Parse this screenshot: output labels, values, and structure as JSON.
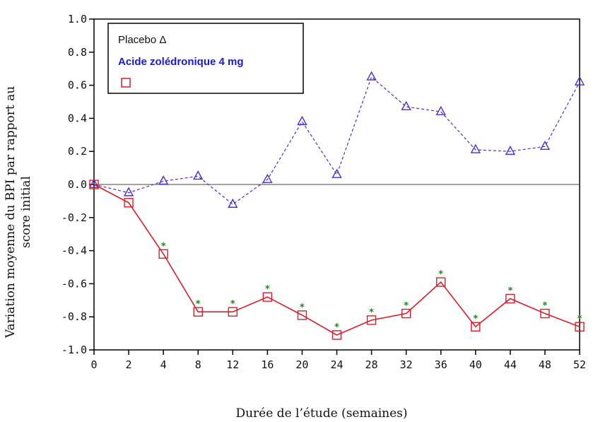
{
  "chart_data": {
    "type": "line",
    "xlabel": "Durée de l’étude (semaines)",
    "ylabel_lines": [
      "Variation moyenne du BPI par rapport au",
      "score initial"
    ],
    "x": [
      0,
      2,
      4,
      8,
      12,
      16,
      20,
      24,
      28,
      32,
      36,
      40,
      44,
      48,
      52
    ],
    "x_tick_labels": [
      "0",
      "2",
      "4",
      "8",
      "12",
      "16",
      "20",
      "24",
      "28",
      "32",
      "36",
      "40",
      "44",
      "48",
      "52"
    ],
    "ylim": [
      -1.0,
      1.0
    ],
    "y_tick_labels": [
      "1.0",
      "0.8",
      "0.6",
      "0.4",
      "0.2",
      "0.0",
      "-0.2",
      "-0.4",
      "-0.6",
      "-0.8",
      "-1.0"
    ],
    "reference_line_y": 0.0,
    "legend": {
      "placement": "top-left",
      "line1": "Placebo Δ",
      "line2": "Acide zolédronique 4 mg",
      "line3_marker": "square"
    },
    "series": [
      {
        "marker": "triangle",
        "color": "#4b2fd0",
        "linestyle": "dashed",
        "values": [
          0.0,
          -0.05,
          0.02,
          0.05,
          -0.12,
          0.03,
          0.38,
          0.06,
          0.65,
          0.47,
          0.44,
          0.21,
          0.2,
          0.23,
          0.62
        ]
      },
      {
        "marker": "square",
        "color": "#d81e2a",
        "linestyle": "solid",
        "values": [
          0.0,
          -0.11,
          -0.42,
          -0.77,
          -0.77,
          -0.68,
          -0.79,
          -0.91,
          -0.82,
          -0.78,
          -0.59,
          -0.86,
          -0.69,
          -0.78,
          -0.86
        ],
        "significance_marker": "*",
        "significance_color": "#1a8a1a",
        "significant": [
          false,
          false,
          true,
          true,
          true,
          true,
          true,
          true,
          true,
          true,
          true,
          true,
          true,
          true,
          true
        ]
      }
    ],
    "grid": false
  }
}
